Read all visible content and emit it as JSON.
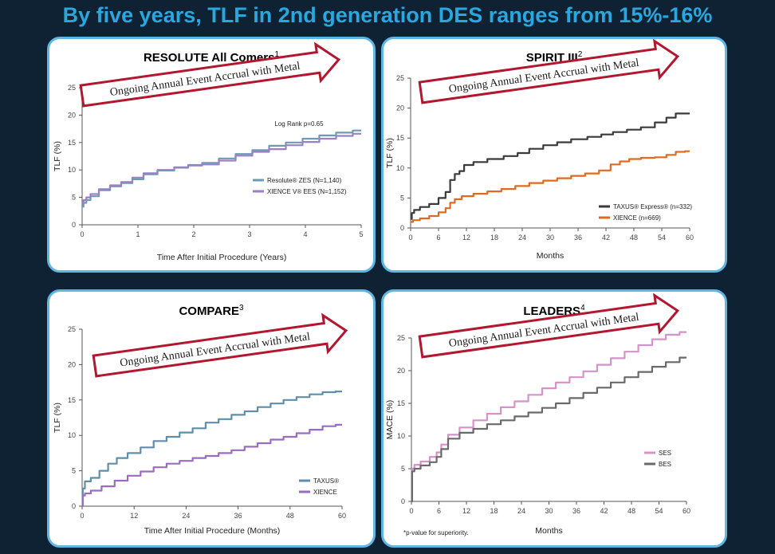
{
  "slide_title": "By five years, TLF in 2nd generation DES ranges from 15%-16%",
  "banner_text": "Ongoing Annual Event Accrual with Metal",
  "colors": {
    "title": "#29a8e0",
    "panel_border": "#5fb6e4",
    "banner_border": "#b3162f",
    "background": "#0e2233"
  },
  "chart_data": [
    {
      "type": "line",
      "title": "RESOLUTE All Comers",
      "title_sup": "1",
      "xlabel": "Time After Initial Procedure (Years)",
      "ylabel": "TLF (%)",
      "xlim": [
        0,
        5
      ],
      "ylim": [
        0,
        25
      ],
      "xticks": [
        "0",
        "1",
        "2",
        "3",
        "4",
        "5"
      ],
      "yticks": [
        "0",
        "5",
        "10",
        "15",
        "20",
        "25"
      ],
      "annotation": "Log Rank p=0.65",
      "legend_placement": "lower-right",
      "series": [
        {
          "name": "Resolute® ZES (N=1,140)",
          "color": "#6c9bb3",
          "x": [
            0,
            0.05,
            0.1,
            0.2,
            0.4,
            0.6,
            0.8,
            1.0,
            1.2,
            1.5,
            1.8,
            2.0,
            2.3,
            2.6,
            2.9,
            3.2,
            3.5,
            3.8,
            4.1,
            4.4,
            4.7,
            5.0
          ],
          "values": [
            3.3,
            4.0,
            4.5,
            5.2,
            6.3,
            7.0,
            7.6,
            8.3,
            9.2,
            9.9,
            10.4,
            10.9,
            11.3,
            12.1,
            12.9,
            13.6,
            14.4,
            15.0,
            15.7,
            16.3,
            16.8,
            17.2
          ]
        },
        {
          "name": "XIENCE V® EES (N=1,152)",
          "color": "#9a80c4",
          "x": [
            0,
            0.05,
            0.1,
            0.2,
            0.4,
            0.6,
            0.8,
            1.0,
            1.2,
            1.5,
            1.8,
            2.0,
            2.3,
            2.6,
            2.9,
            3.2,
            3.5,
            3.8,
            4.1,
            4.4,
            4.7,
            5.0
          ],
          "values": [
            4.0,
            4.5,
            5.0,
            5.6,
            6.5,
            7.2,
            7.8,
            8.6,
            9.4,
            10.0,
            10.5,
            10.8,
            11.0,
            11.7,
            12.6,
            13.3,
            13.8,
            14.5,
            15.1,
            15.7,
            16.2,
            16.6
          ]
        }
      ]
    },
    {
      "type": "line",
      "title": "SPIRIT III",
      "title_sup": "2",
      "xlabel": "Months",
      "ylabel": "TLF (%)",
      "xlim": [
        0,
        60
      ],
      "ylim": [
        0,
        25
      ],
      "xticks": [
        "0",
        "6",
        "12",
        "18",
        "24",
        "30",
        "36",
        "42",
        "48",
        "54",
        "60"
      ],
      "yticks": [
        "0",
        "5",
        "10",
        "15",
        "20",
        "25"
      ],
      "legend_placement": "lower-right",
      "series": [
        {
          "name": "TAXUS® Express® (n=332)",
          "color": "#3a3a3a",
          "x": [
            0,
            0.5,
            1,
            3,
            5,
            7,
            8,
            9,
            10,
            11,
            12,
            15,
            18,
            22,
            24,
            27,
            30,
            33,
            36,
            40,
            42,
            45,
            48,
            51,
            54,
            56,
            58,
            60
          ],
          "values": [
            1.5,
            2.5,
            3.0,
            3.5,
            4.0,
            5.0,
            6.0,
            8.0,
            9.0,
            9.5,
            10.5,
            11.0,
            11.5,
            12.0,
            12.5,
            13.2,
            13.8,
            14.3,
            14.8,
            15.2,
            15.6,
            16.0,
            16.4,
            16.8,
            17.6,
            18.4,
            19.1,
            19.1
          ]
        },
        {
          "name": "XIENCE (n=669)",
          "color": "#e06a1e",
          "x": [
            0,
            1,
            3,
            5,
            7,
            8,
            9,
            10,
            12,
            15,
            18,
            21,
            24,
            27,
            30,
            33,
            36,
            39,
            42,
            44,
            46,
            48,
            51,
            54,
            56,
            58,
            60
          ],
          "values": [
            1.0,
            1.3,
            1.6,
            2.0,
            2.6,
            3.3,
            4.2,
            4.8,
            5.3,
            5.7,
            6.1,
            6.5,
            7.0,
            7.5,
            7.9,
            8.3,
            8.7,
            9.1,
            9.6,
            10.6,
            11.1,
            11.5,
            11.7,
            11.8,
            12.2,
            12.7,
            12.8
          ]
        }
      ]
    },
    {
      "type": "line",
      "title": "COMPARE",
      "title_sup": "3",
      "xlabel": "Time After Initial Procedure (Months)",
      "ylabel": "TLF (%)",
      "xlim": [
        0,
        60
      ],
      "ylim": [
        0,
        25
      ],
      "xticks": [
        "0",
        "12",
        "24",
        "36",
        "48",
        "60"
      ],
      "yticks": [
        "0",
        "5",
        "10",
        "15",
        "20",
        "25"
      ],
      "legend_placement": "lower-right",
      "series": [
        {
          "name": "TAXUS®",
          "color": "#5f8eaa",
          "x": [
            0,
            0.3,
            1,
            3,
            5,
            7,
            9,
            12,
            15,
            18,
            21,
            24,
            27,
            30,
            33,
            36,
            39,
            42,
            45,
            48,
            51,
            54,
            57,
            60
          ],
          "values": [
            0,
            2.5,
            3.5,
            4.0,
            5.0,
            6.0,
            6.8,
            7.5,
            8.3,
            9.2,
            9.8,
            10.4,
            11.0,
            11.8,
            12.3,
            12.9,
            13.4,
            14.0,
            14.5,
            15.0,
            15.4,
            15.8,
            16.1,
            16.2
          ]
        },
        {
          "name": "XIENCE",
          "color": "#9a6cc0",
          "x": [
            0,
            0.3,
            1,
            3,
            6,
            9,
            12,
            15,
            18,
            21,
            24,
            27,
            30,
            33,
            36,
            39,
            42,
            45,
            48,
            51,
            54,
            57,
            60
          ],
          "values": [
            0,
            1.5,
            1.8,
            2.2,
            2.8,
            3.6,
            4.3,
            4.9,
            5.5,
            6.0,
            6.4,
            6.8,
            7.1,
            7.5,
            7.9,
            8.4,
            8.9,
            9.4,
            9.8,
            10.3,
            10.8,
            11.3,
            11.5
          ]
        }
      ]
    },
    {
      "type": "line",
      "title": "LEADERS",
      "title_sup": "4",
      "xlabel": "Months",
      "ylabel": "MACE (%)",
      "xlim": [
        0,
        60
      ],
      "ylim": [
        0,
        25
      ],
      "xticks": [
        "0",
        "6",
        "12",
        "18",
        "24",
        "30",
        "36",
        "42",
        "48",
        "54",
        "60"
      ],
      "yticks": [
        "0",
        "5",
        "10",
        "15",
        "20",
        "25"
      ],
      "footnote": "*p-value for superiority.",
      "legend_placement": "lower-right",
      "series": [
        {
          "name": "SES",
          "color": "#d891c9",
          "x": [
            0,
            0.3,
            1,
            3,
            5,
            6,
            7,
            9,
            12,
            15,
            18,
            21,
            24,
            27,
            30,
            33,
            36,
            39,
            42,
            45,
            48,
            51,
            54,
            57,
            60
          ],
          "values": [
            0,
            5.0,
            5.6,
            6.1,
            6.8,
            7.5,
            8.7,
            10.2,
            11.3,
            12.4,
            13.4,
            14.4,
            15.3,
            16.3,
            17.3,
            18.2,
            19.0,
            19.9,
            20.9,
            21.9,
            22.9,
            23.9,
            24.8,
            25.5,
            25.9
          ]
        },
        {
          "name": "BES",
          "color": "#6a6a6a",
          "x": [
            0,
            0.3,
            1,
            3,
            5,
            6,
            7,
            9,
            12,
            15,
            18,
            21,
            24,
            27,
            30,
            33,
            36,
            39,
            42,
            45,
            48,
            51,
            54,
            57,
            60
          ],
          "values": [
            0,
            4.6,
            5.0,
            5.5,
            6.0,
            6.8,
            8.0,
            9.6,
            10.5,
            11.1,
            11.8,
            12.4,
            13.0,
            13.6,
            14.3,
            15.0,
            15.8,
            16.6,
            17.4,
            18.2,
            19.0,
            19.8,
            20.6,
            21.3,
            22.0
          ]
        }
      ]
    }
  ]
}
